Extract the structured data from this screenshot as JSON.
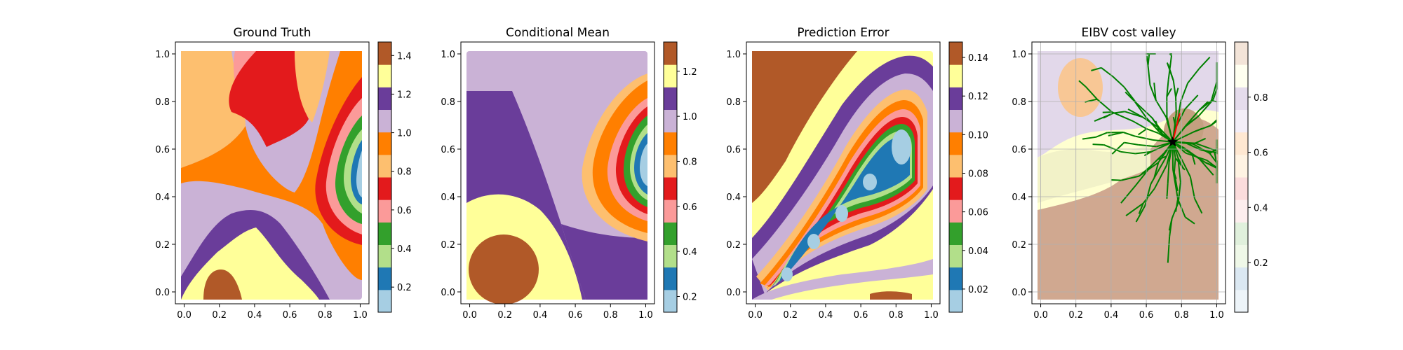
{
  "figure": {
    "panel_count": 4
  },
  "chart_data": [
    {
      "type": "heatmap",
      "title": "Ground Truth",
      "xlabel": "",
      "ylabel": "",
      "xlim": [
        -0.05,
        1.05
      ],
      "ylim": [
        -0.05,
        1.05
      ],
      "x_ticks": [
        "0.0",
        "0.2",
        "0.4",
        "0.6",
        "0.8",
        "1.0"
      ],
      "y_ticks": [
        "0.0",
        "0.2",
        "0.4",
        "0.6",
        "0.8",
        "1.0"
      ],
      "colormap": "Paired",
      "colorbar": {
        "range": [
          0.07,
          1.47
        ],
        "ticks": [
          "0.2",
          "0.4",
          "0.6",
          "0.8",
          "1.0",
          "1.2",
          "1.4"
        ]
      },
      "regions": [
        {
          "level": 0.95,
          "description": "bottom-left, central and right band"
        },
        {
          "level": 0.85,
          "description": "left wedge near y=0.6 and bottom-right"
        },
        {
          "level": 1.15,
          "description": "bands near bottom and top-right"
        },
        {
          "level": 1.25,
          "description": "bottom-center plateau"
        },
        {
          "level": 1.45,
          "description": "small patch at bottom around x=0.2"
        },
        {
          "level": 0.55,
          "description": "red band from top-center sweeping right"
        },
        {
          "level": 0.3,
          "description": "right-side low core near x=1.0, y=0.6"
        }
      ]
    },
    {
      "type": "heatmap",
      "title": "Conditional Mean",
      "xlabel": "",
      "ylabel": "",
      "xlim": [
        -0.05,
        1.05
      ],
      "ylim": [
        -0.05,
        1.05
      ],
      "x_ticks": [
        "0.0",
        "0.2",
        "0.4",
        "0.6",
        "0.8",
        "1.0"
      ],
      "y_ticks": [
        "0.0",
        "0.2",
        "0.4",
        "0.6",
        "0.8",
        "1.0"
      ],
      "colormap": "Paired",
      "colorbar": {
        "range": [
          0.13,
          1.33
        ],
        "ticks": [
          "0.2",
          "0.4",
          "0.6",
          "0.8",
          "1.0",
          "1.2"
        ]
      },
      "regions": [
        {
          "level": 1.0,
          "description": "top band"
        },
        {
          "level": 1.1,
          "description": "diagonal purple band"
        },
        {
          "level": 1.2,
          "description": "yellow lower-left region"
        },
        {
          "level": 1.3,
          "description": "brown disc at x=0.2, y=0.15"
        },
        {
          "level": 0.2,
          "description": "right-side low core near x=1.0, y=0.55"
        }
      ]
    },
    {
      "type": "heatmap",
      "title": "Prediction Error",
      "xlabel": "",
      "ylabel": "",
      "xlim": [
        -0.05,
        1.05
      ],
      "ylim": [
        -0.05,
        1.05
      ],
      "x_ticks": [
        "0.0",
        "0.2",
        "0.4",
        "0.6",
        "0.8",
        "1.0"
      ],
      "y_ticks": [
        "0.0",
        "0.2",
        "0.4",
        "0.6",
        "0.8",
        "1.0"
      ],
      "colormap": "Paired",
      "colorbar": {
        "range": [
          0.008,
          0.148
        ],
        "ticks": [
          "0.02",
          "0.04",
          "0.06",
          "0.08",
          "0.10",
          "0.12",
          "0.14"
        ]
      },
      "regions": [
        {
          "level": 0.145,
          "description": "top-left high-error region"
        },
        {
          "level": 0.01,
          "description": "low-error valley along sampled diagonal"
        }
      ]
    },
    {
      "type": "heatmap",
      "title": "EIBV cost valley",
      "xlabel": "",
      "ylabel": "",
      "xlim": [
        -0.05,
        1.05
      ],
      "ylim": [
        -0.05,
        1.05
      ],
      "x_ticks": [
        "0.0",
        "0.2",
        "0.4",
        "0.6",
        "0.8",
        "1.0"
      ],
      "y_ticks": [
        "0.0",
        "0.2",
        "0.4",
        "0.6",
        "0.8",
        "1.0"
      ],
      "colormap": "Paired (pale)",
      "colorbar": {
        "range": [
          0.02,
          1.0
        ],
        "ticks": [
          "0.2",
          "0.4",
          "0.6",
          "0.8"
        ]
      },
      "current_location": {
        "x": 0.75,
        "y": 0.63
      },
      "next_waypoint": {
        "x": 0.79,
        "y": 0.75
      },
      "tree_color": "#008000",
      "path_color": "#ff0000"
    }
  ]
}
